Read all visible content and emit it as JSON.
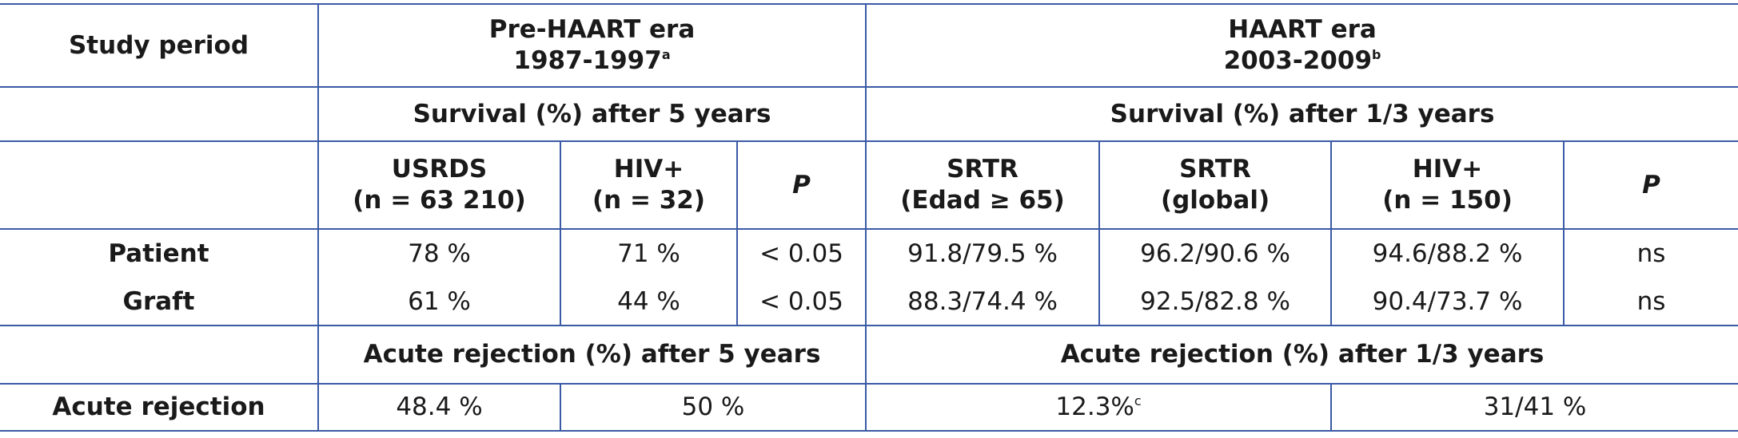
{
  "table": {
    "study_period": "Study period",
    "eras": [
      {
        "name": "Pre-HAART era",
        "years": "1987-1997",
        "note": "a"
      },
      {
        "name": "HAART era",
        "years": "2003-2009",
        "note": "b"
      }
    ],
    "survival_headers": [
      "Survival (%) after 5 years",
      "Survival (%) after 1/3 years"
    ],
    "groups": [
      [
        "USRDS",
        "(n = 63 210)"
      ],
      [
        "HIV+",
        "(n = 32)"
      ],
      [
        "P"
      ],
      [
        "SRTR",
        "(Edad ≥ 65)"
      ],
      [
        "SRTR",
        "(global)"
      ],
      [
        "HIV+",
        "(n = 150)"
      ],
      [
        "P"
      ]
    ],
    "rows": [
      {
        "label": "Patient",
        "cells": [
          "78 %",
          "71 %",
          "< 0.05",
          "91.8/79.5 %",
          "96.2/90.6 %",
          "94.6/88.2 %",
          "ns"
        ]
      },
      {
        "label": "Graft",
        "cells": [
          "61 %",
          "44 %",
          "< 0.05",
          "88.3/74.4 %",
          "92.5/82.8 %",
          "90.4/73.7 %",
          "ns"
        ]
      }
    ],
    "rejection_headers": [
      "Acute rejection (%) after 5 years",
      "Acute rejection (%) after 1/3 years"
    ],
    "rejection": {
      "label": "Acute rejection",
      "cells": [
        "48.4 %",
        "50 %",
        "12.3%",
        "31/41 %"
      ],
      "note": "c"
    }
  }
}
